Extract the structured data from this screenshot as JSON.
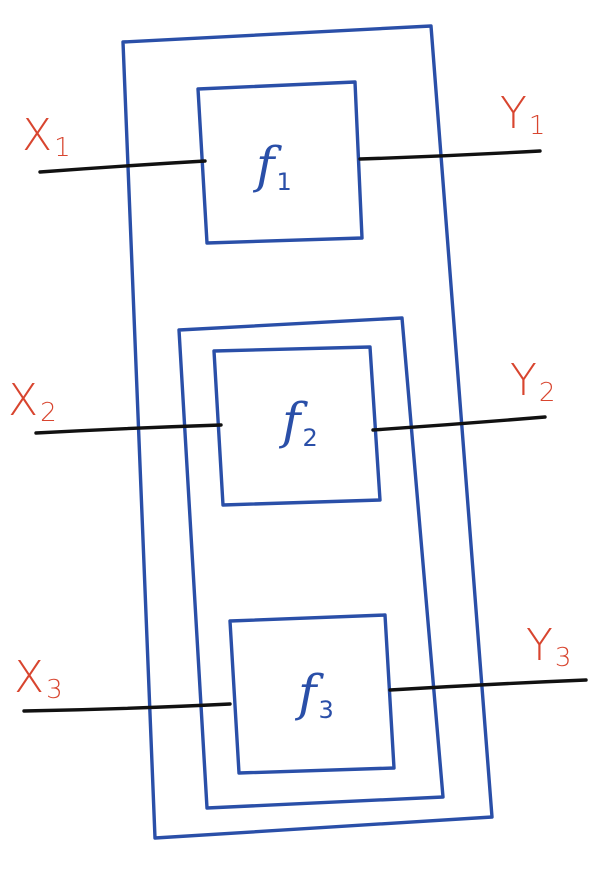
{
  "colors": {
    "box_stroke": "#2a4fa8",
    "wire_stroke": "#111111",
    "io_label": "#d8452f",
    "function_label": "#2a4fa8"
  },
  "functions": [
    {
      "main": "f",
      "sub": "1"
    },
    {
      "main": "f",
      "sub": "2"
    },
    {
      "main": "f",
      "sub": "3"
    }
  ],
  "inputs": [
    {
      "main": "X",
      "sub": "1"
    },
    {
      "main": "X",
      "sub": "2"
    },
    {
      "main": "X",
      "sub": "3"
    }
  ],
  "outputs": [
    {
      "main": "Y",
      "sub": "1"
    },
    {
      "main": "Y",
      "sub": "2"
    },
    {
      "main": "Y",
      "sub": "3"
    }
  ]
}
